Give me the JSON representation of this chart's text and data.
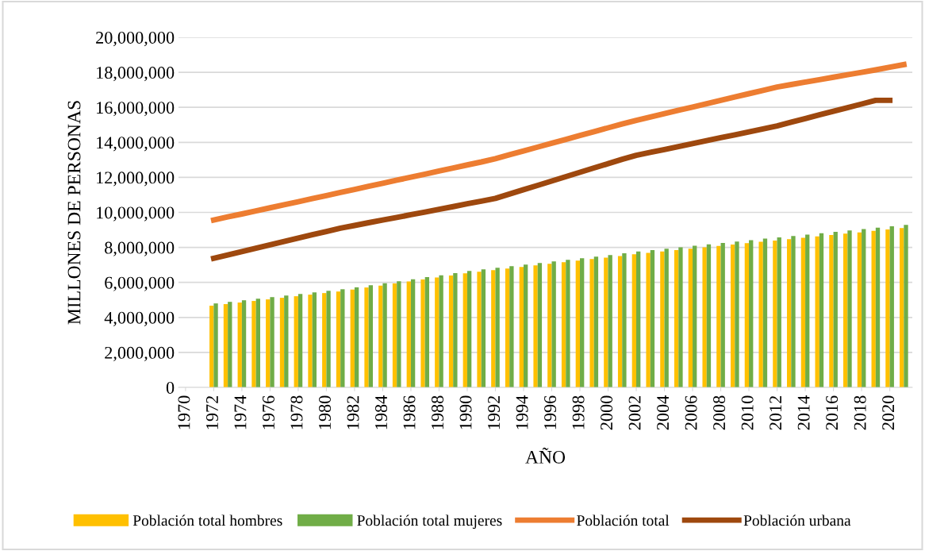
{
  "chart_data": {
    "type": "bar",
    "xlabel": "AÑO",
    "ylabel": "MILLONES DE PERSONAS",
    "x": [
      1972,
      1973,
      1974,
      1975,
      1976,
      1977,
      1978,
      1979,
      1980,
      1981,
      1982,
      1983,
      1984,
      1985,
      1986,
      1987,
      1988,
      1989,
      1990,
      1991,
      1992,
      1993,
      1994,
      1995,
      1996,
      1997,
      1998,
      1999,
      2000,
      2001,
      2002,
      2003,
      2004,
      2005,
      2006,
      2007,
      2008,
      2009,
      2010,
      2011,
      2012,
      2013,
      2014,
      2015,
      2016,
      2017,
      2018,
      2019,
      2020,
      2021
    ],
    "series": [
      {
        "name": "Población total hombres",
        "color": "#ffc000",
        "values": [
          4670000.0,
          4760000.0,
          4850000.0,
          4940000.0,
          5030000.0,
          5120000.0,
          5210000.0,
          5300000.0,
          5390000.0,
          5480000.0,
          5590000.0,
          5710000.0,
          5820000.0,
          5940000.0,
          6050000.0,
          6170000.0,
          6280000.0,
          6400000.0,
          6520000.0,
          6610000.0,
          6700000.0,
          6790000.0,
          6880000.0,
          6970000.0,
          7060000.0,
          7150000.0,
          7240000.0,
          7330000.0,
          7420000.0,
          7510000.0,
          7610000.0,
          7690000.0,
          7770000.0,
          7850000.0,
          7920000.0,
          8000000.0,
          8080000.0,
          8160000.0,
          8240000.0,
          8320000.0,
          8390000.0,
          8470000.0,
          8550000.0,
          8630000.0,
          8710000.0,
          8790000.0,
          8860000.0,
          8940000.0,
          9020000.0,
          9100000.0
        ]
      },
      {
        "name": "Población total mujeres",
        "color": "#70ad47",
        "values": [
          4800000.0,
          4890000.0,
          4980000.0,
          5070000.0,
          5160000.0,
          5250000.0,
          5340000.0,
          5430000.0,
          5520000.0,
          5610000.0,
          5720000.0,
          5840000.0,
          5950000.0,
          6070000.0,
          6180000.0,
          6300000.0,
          6410000.0,
          6530000.0,
          6660000.0,
          6750000.0,
          6840000.0,
          6930000.0,
          7020000.0,
          7110000.0,
          7200000.0,
          7290000.0,
          7380000.0,
          7470000.0,
          7560000.0,
          7660000.0,
          7770000.0,
          7850000.0,
          7930000.0,
          8010000.0,
          8090000.0,
          8170000.0,
          8250000.0,
          8330000.0,
          8410000.0,
          8500000.0,
          8570000.0,
          8650000.0,
          8730000.0,
          8810000.0,
          8890000.0,
          8970000.0,
          9050000.0,
          9130000.0,
          9210000.0,
          9290000.0
        ]
      },
      {
        "name": "Población total",
        "type": "line",
        "color": "#ed7d31",
        "values": [
          9560000.0,
          9740000.0,
          9910000.0,
          10090000.0,
          10260000.0,
          10440000.0,
          10610000.0,
          10790000.0,
          10960000.0,
          11140000.0,
          11310000.0,
          11490000.0,
          11660000.0,
          11840000.0,
          12010000.0,
          12180000.0,
          12360000.0,
          12530000.0,
          12710000.0,
          12880000.0,
          13070000.0,
          13290000.0,
          13510000.0,
          13730000.0,
          13950000.0,
          14170000.0,
          14390000.0,
          14610000.0,
          14830000.0,
          15050000.0,
          15260000.0,
          15450000.0,
          15640000.0,
          15830000.0,
          16020000.0,
          16210000.0,
          16400000.0,
          16590000.0,
          16780000.0,
          16970000.0,
          17160000.0,
          17300000.0,
          17440000.0,
          17580000.0,
          17720000.0,
          17860000.0,
          18000000.0,
          18140000.0,
          18290000.0,
          18440000.0
        ]
      },
      {
        "name": "Población urbana",
        "type": "line",
        "color": "#9e480e",
        "values": [
          7380000.0,
          7570000.0,
          7760000.0,
          7950000.0,
          8150000.0,
          8340000.0,
          8530000.0,
          8720000.0,
          8910000.0,
          9100000.0,
          9250000.0,
          9410000.0,
          9560000.0,
          9710000.0,
          9870000.0,
          10020000.0,
          10180000.0,
          10330000.0,
          10490000.0,
          10640000.0,
          10800000.0,
          11050000.0,
          11300000.0,
          11540000.0,
          11790000.0,
          12040000.0,
          12290000.0,
          12540000.0,
          12780000.0,
          13030000.0,
          13260000.0,
          13430000.0,
          13590000.0,
          13760000.0,
          13930000.0,
          14100000.0,
          14270000.0,
          14430000.0,
          14600000.0,
          14770000.0,
          14940000.0,
          15150000.0,
          15360000.0,
          15570000.0,
          15780000.0,
          15980000.0,
          16190000.0,
          16400000.0,
          16400000.0,
          null
        ]
      }
    ],
    "xlim": [
      1969.5,
      2021.6
    ],
    "xticks": [
      1970,
      1972,
      1974,
      1976,
      1978,
      1980,
      1982,
      1984,
      1986,
      1988,
      1990,
      1992,
      1994,
      1996,
      1998,
      2000,
      2002,
      2004,
      2006,
      2008,
      2010,
      2012,
      2014,
      2016,
      2018,
      2020
    ],
    "ylim": [
      0,
      20000000
    ],
    "yticks": [
      {
        "value": 0,
        "label": "0"
      },
      {
        "value": 2000000,
        "label": "2,000,000"
      },
      {
        "value": 4000000,
        "label": "4,000,000"
      },
      {
        "value": 6000000,
        "label": "6,000,000"
      },
      {
        "value": 8000000,
        "label": "8,000,000"
      },
      {
        "value": 10000000,
        "label": "10,000,000"
      },
      {
        "value": 12000000,
        "label": "12,000,000"
      },
      {
        "value": 14000000,
        "label": "14,000,000"
      },
      {
        "value": 16000000,
        "label": "16,000,000"
      },
      {
        "value": 18000000,
        "label": "18,000,000"
      },
      {
        "value": 20000000,
        "label": "20,000,000"
      }
    ],
    "grid": "y",
    "legend": "bottom",
    "marker": "none",
    "line_style": "solid"
  }
}
